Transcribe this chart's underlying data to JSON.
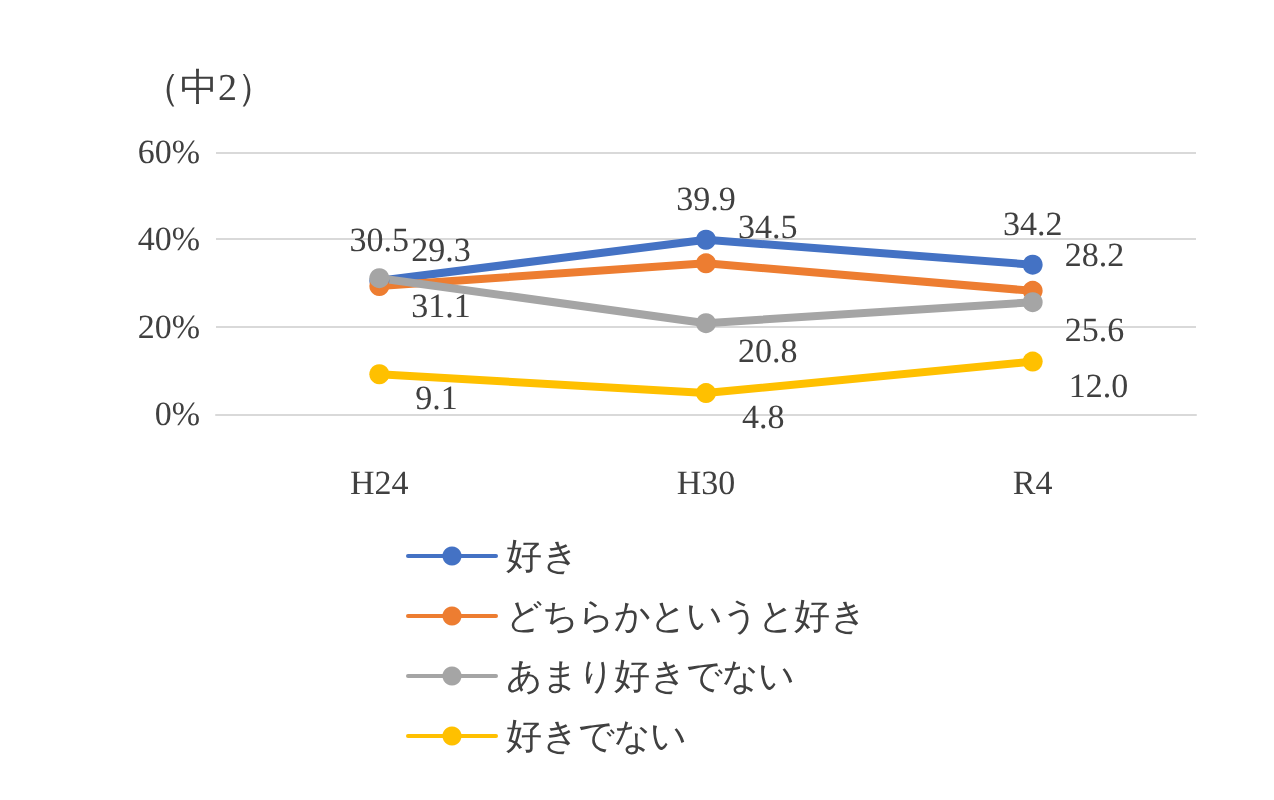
{
  "chart_data": {
    "type": "line",
    "title": "（中2）",
    "categories": [
      "H24",
      "H30",
      "R4"
    ],
    "series": [
      {
        "name": "好き",
        "color": "#4472c4",
        "values": [
          30.5,
          39.9,
          34.2
        ],
        "value_labels": [
          "30.5",
          "39.9",
          "34.2"
        ]
      },
      {
        "name": "どちらかというと好き",
        "color": "#ed7d31",
        "values": [
          29.3,
          34.5,
          28.2
        ],
        "value_labels": [
          "29.3",
          "34.5",
          "28.2"
        ]
      },
      {
        "name": "あまり好きでない",
        "color": "#a5a5a5",
        "values": [
          31.1,
          20.8,
          25.6
        ],
        "value_labels": [
          "31.1",
          "20.8",
          "25.6"
        ]
      },
      {
        "name": "好きでない",
        "color": "#ffc000",
        "values": [
          9.1,
          4.8,
          12.0
        ],
        "value_labels": [
          "9.1",
          "4.8",
          "12.0"
        ]
      }
    ],
    "ylim": [
      0,
      60
    ],
    "yticks": [
      {
        "value": 0,
        "label": "0%"
      },
      {
        "value": 20,
        "label": "20%"
      },
      {
        "value": 40,
        "label": "40%"
      },
      {
        "value": 60,
        "label": "60%"
      }
    ],
    "grid": "y",
    "legend": "bottom",
    "marker": "circle",
    "line_style": "solid"
  }
}
